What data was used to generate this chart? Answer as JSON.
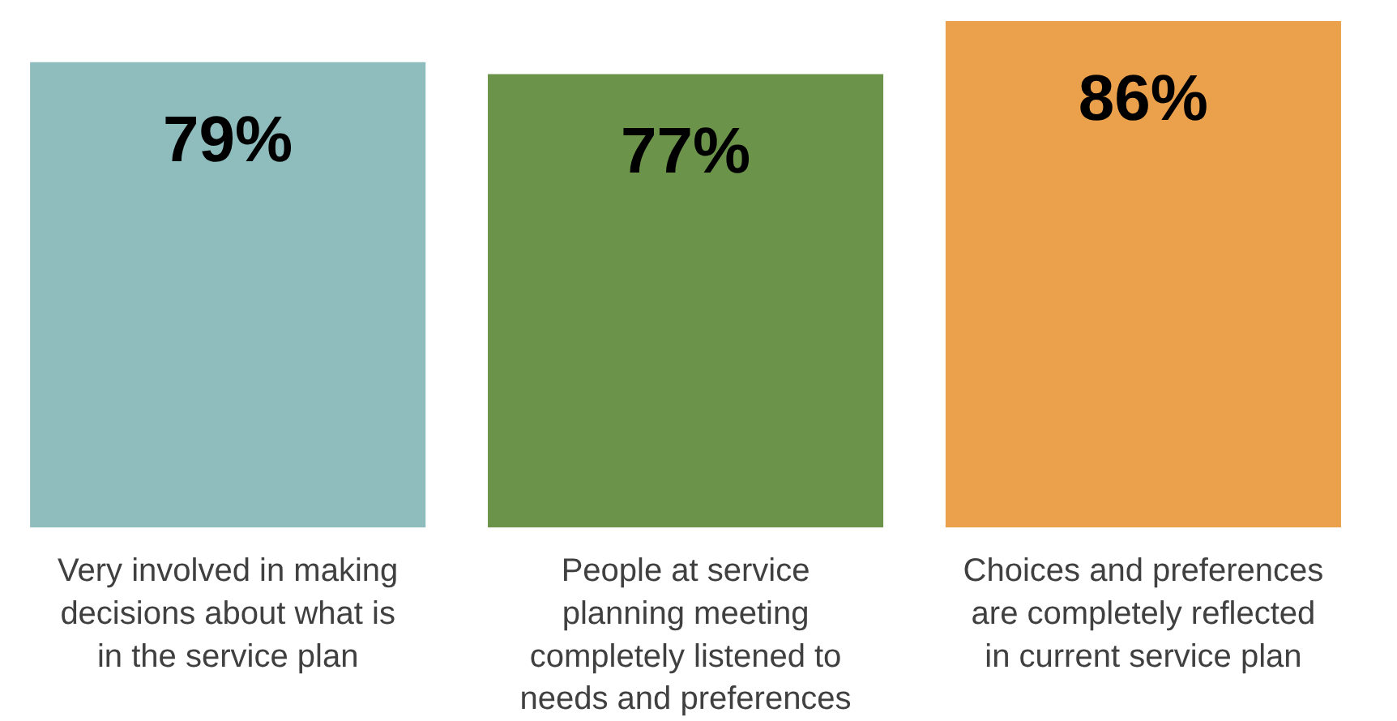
{
  "chart_data": {
    "type": "bar",
    "categories": [
      "Very involved in making decisions about what is in the service plan",
      "People at service planning meeting completely listened to needs and preferences",
      "Choices and preferences are completely reflected in current service plan"
    ],
    "values": [
      79,
      77,
      86
    ],
    "value_labels": [
      "79%",
      "77%",
      "86%"
    ],
    "colors": [
      "#8fbcbd",
      "#6b934a",
      "#eba04c"
    ],
    "grid": false,
    "tick_labels": "x"
  }
}
